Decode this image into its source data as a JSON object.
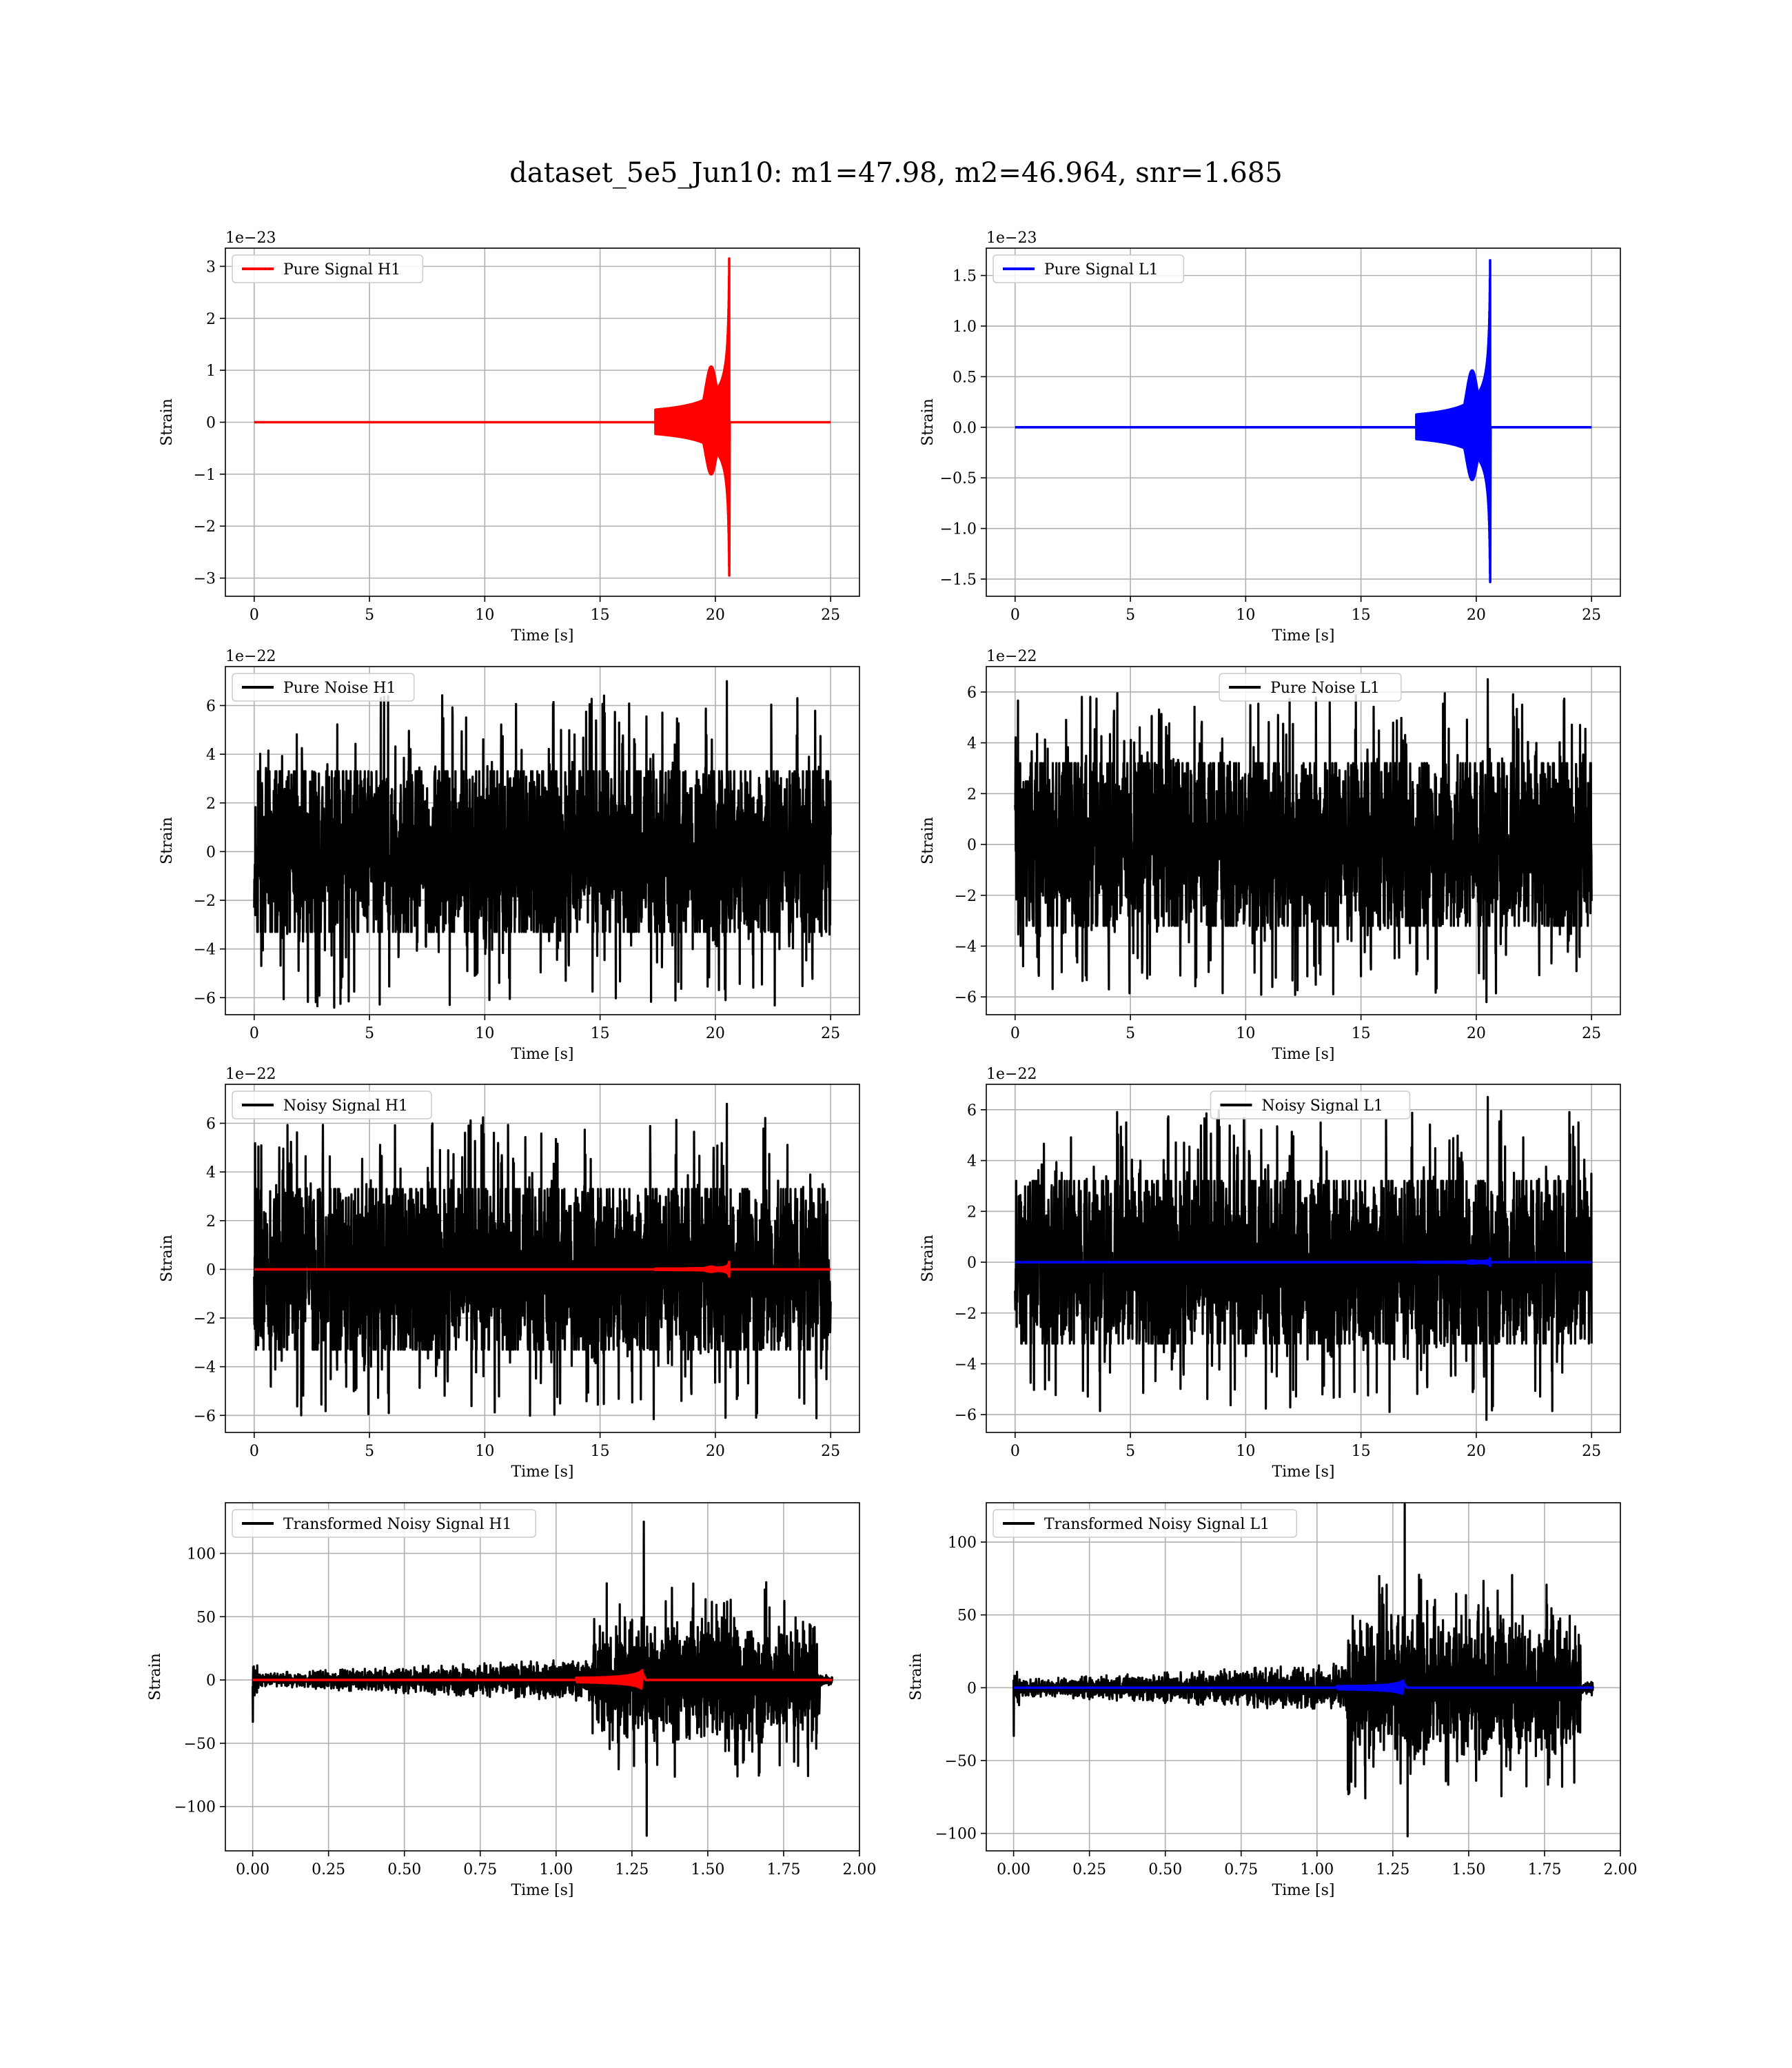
{
  "figure": {
    "title": "dataset_5e5_Jun10: m1=47.98, m2=46.964, snr=1.685"
  },
  "colors": {
    "h1": "#ff0000",
    "l1": "#0000ff",
    "noise": "#000000",
    "grid": "#b0b0b0"
  },
  "chart_data": [
    {
      "id": "pure-signal-h1",
      "type": "line",
      "xlabel": "Time [s]",
      "ylabel": "Strain",
      "offset_text": "1e−23",
      "xlim": [
        -1.25,
        26.25
      ],
      "ylim": [
        -3.35,
        3.35
      ],
      "xticks": [
        0,
        5,
        10,
        15,
        20,
        25
      ],
      "xtick_labels": [
        "0",
        "5",
        "10",
        "15",
        "20",
        "25"
      ],
      "yticks": [
        -3,
        -2,
        -1,
        0,
        1,
        2,
        3
      ],
      "ytick_labels": [
        "−3",
        "−2",
        "−1",
        "0",
        "1",
        "2",
        "3"
      ],
      "legend_position": "top-left",
      "series": [
        {
          "name": "Pure Signal H1",
          "kind": "chirp",
          "color": "#ff0000",
          "t_start": 0,
          "t_end": 25,
          "merger_time": 20.6,
          "peak_max": 3.15,
          "peak_min": -2.95,
          "inspiral_amp": 1.0
        }
      ]
    },
    {
      "id": "pure-signal-l1",
      "type": "line",
      "xlabel": "Time [s]",
      "ylabel": "Strain",
      "offset_text": "1e−23",
      "xlim": [
        -1.25,
        26.25
      ],
      "ylim": [
        -1.67,
        1.77
      ],
      "xticks": [
        0,
        5,
        10,
        15,
        20,
        25
      ],
      "xtick_labels": [
        "0",
        "5",
        "10",
        "15",
        "20",
        "25"
      ],
      "yticks": [
        -1.5,
        -1.0,
        -0.5,
        0.0,
        0.5,
        1.0,
        1.5
      ],
      "ytick_labels": [
        "−1.5",
        "−1.0",
        "−0.5",
        "0.0",
        "0.5",
        "1.0",
        "1.5"
      ],
      "legend_position": "top-left",
      "series": [
        {
          "name": "Pure Signal L1",
          "kind": "chirp",
          "color": "#0000ff",
          "t_start": 0,
          "t_end": 25,
          "merger_time": 20.6,
          "peak_max": 1.65,
          "peak_min": -1.53,
          "inspiral_amp": 0.5
        }
      ]
    },
    {
      "id": "pure-noise-h1",
      "type": "line",
      "xlabel": "Time [s]",
      "ylabel": "Strain",
      "offset_text": "1e−22",
      "xlim": [
        -1.25,
        26.25
      ],
      "ylim": [
        -6.7,
        7.6
      ],
      "xticks": [
        0,
        5,
        10,
        15,
        20,
        25
      ],
      "xtick_labels": [
        "0",
        "5",
        "10",
        "15",
        "20",
        "25"
      ],
      "yticks": [
        -6,
        -4,
        -2,
        0,
        2,
        4,
        6
      ],
      "ytick_labels": [
        "−6",
        "−4",
        "−2",
        "0",
        "2",
        "4",
        "6"
      ],
      "legend_position": "top-left",
      "series": [
        {
          "name": "Pure Noise H1",
          "kind": "noise",
          "color": "#000000",
          "t_start": 0,
          "t_end": 25,
          "band": 3.3,
          "spike_max": 7.0,
          "spike_min": -6.1
        }
      ]
    },
    {
      "id": "pure-noise-l1",
      "type": "line",
      "xlabel": "Time [s]",
      "ylabel": "Strain",
      "offset_text": "1e−22",
      "xlim": [
        -1.25,
        26.25
      ],
      "ylim": [
        -6.7,
        7.0
      ],
      "xticks": [
        0,
        5,
        10,
        15,
        20,
        25
      ],
      "xtick_labels": [
        "0",
        "5",
        "10",
        "15",
        "20",
        "25"
      ],
      "yticks": [
        -6,
        -4,
        -2,
        0,
        2,
        4,
        6
      ],
      "ytick_labels": [
        "−6",
        "−4",
        "−2",
        "0",
        "2",
        "4",
        "6"
      ],
      "legend_position": "top-center",
      "series": [
        {
          "name": "Pure Noise L1",
          "kind": "noise",
          "color": "#000000",
          "t_start": 0,
          "t_end": 25,
          "band": 3.2,
          "spike_max": 6.5,
          "spike_min": -6.2
        }
      ]
    },
    {
      "id": "noisy-signal-h1",
      "type": "line",
      "xlabel": "Time [s]",
      "ylabel": "Strain",
      "offset_text": "1e−22",
      "xlim": [
        -1.25,
        26.25
      ],
      "ylim": [
        -6.7,
        7.6
      ],
      "xticks": [
        0,
        5,
        10,
        15,
        20,
        25
      ],
      "xtick_labels": [
        "0",
        "5",
        "10",
        "15",
        "20",
        "25"
      ],
      "yticks": [
        -6,
        -4,
        -2,
        0,
        2,
        4,
        6
      ],
      "ytick_labels": [
        "−6",
        "−4",
        "−2",
        "0",
        "2",
        "4",
        "6"
      ],
      "legend_position": "top-left",
      "series": [
        {
          "name": "Noisy Signal H1",
          "kind": "noise",
          "color": "#000000",
          "t_start": 0,
          "t_end": 25,
          "band": 3.3,
          "spike_max": 6.8,
          "spike_min": -6.1
        },
        {
          "name": "",
          "kind": "chirp-small",
          "color": "#ff0000",
          "t_start": 0,
          "t_end": 25,
          "merger_time": 20.6,
          "peak_max": 0.31,
          "peak_min": -0.3
        }
      ]
    },
    {
      "id": "noisy-signal-l1",
      "type": "line",
      "xlabel": "Time [s]",
      "ylabel": "Strain",
      "offset_text": "1e−22",
      "xlim": [
        -1.25,
        26.25
      ],
      "ylim": [
        -6.7,
        7.0
      ],
      "xticks": [
        0,
        5,
        10,
        15,
        20,
        25
      ],
      "xtick_labels": [
        "0",
        "5",
        "10",
        "15",
        "20",
        "25"
      ],
      "yticks": [
        -6,
        -4,
        -2,
        0,
        2,
        4,
        6
      ],
      "ytick_labels": [
        "−6",
        "−4",
        "−2",
        "0",
        "2",
        "4",
        "6"
      ],
      "legend_position": "top-center",
      "series": [
        {
          "name": "Noisy Signal L1",
          "kind": "noise",
          "color": "#000000",
          "t_start": 0,
          "t_end": 25,
          "band": 3.2,
          "spike_max": 6.5,
          "spike_min": -6.2
        },
        {
          "name": "",
          "kind": "chirp-small",
          "color": "#0000ff",
          "t_start": 0,
          "t_end": 25,
          "merger_time": 20.6,
          "peak_max": 0.16,
          "peak_min": -0.15
        }
      ]
    },
    {
      "id": "transformed-noisy-signal-h1",
      "type": "line",
      "xlabel": "Time [s]",
      "ylabel": "Strain",
      "offset_text": "",
      "xlim": [
        -0.09,
        2.0
      ],
      "ylim": [
        -135,
        140
      ],
      "xticks": [
        0.0,
        0.25,
        0.5,
        0.75,
        1.0,
        1.25,
        1.5,
        1.75,
        2.0
      ],
      "xtick_labels": [
        "0.00",
        "0.25",
        "0.50",
        "0.75",
        "1.00",
        "1.25",
        "1.50",
        "1.75",
        "2.00"
      ],
      "yticks": [
        -100,
        -50,
        0,
        50,
        100
      ],
      "ytick_labels": [
        "−100",
        "−50",
        "0",
        "50",
        "100"
      ],
      "legend_position": "top-left",
      "series": [
        {
          "name": "Transformed Noisy Signal H1",
          "kind": "whitened",
          "color": "#000000",
          "t_start": 0,
          "t_end": 1.91,
          "jump_time": 1.12,
          "spike_max": 125,
          "spike_min": -123,
          "cutoff": 1.87
        },
        {
          "name": "",
          "kind": "whitened-chirp",
          "color": "#ff0000",
          "t_start": 0,
          "t_end": 1.91,
          "merger_time": 1.285,
          "peak_max": 8,
          "peak_min": -8
        }
      ]
    },
    {
      "id": "transformed-noisy-signal-l1",
      "type": "line",
      "xlabel": "Time [s]",
      "ylabel": "Strain",
      "offset_text": "",
      "xlim": [
        -0.09,
        2.0
      ],
      "ylim": [
        -112,
        127
      ],
      "xticks": [
        0.0,
        0.25,
        0.5,
        0.75,
        1.0,
        1.25,
        1.5,
        1.75,
        2.0
      ],
      "xtick_labels": [
        "0.00",
        "0.25",
        "0.50",
        "0.75",
        "1.00",
        "1.25",
        "1.50",
        "1.75",
        "2.00"
      ],
      "yticks": [
        -100,
        -50,
        0,
        50,
        100
      ],
      "ytick_labels": [
        "−100",
        "−50",
        "0",
        "50",
        "100"
      ],
      "legend_position": "top-left",
      "series": [
        {
          "name": "Transformed Noisy Signal L1",
          "kind": "whitened",
          "color": "#000000",
          "t_start": 0,
          "t_end": 1.91,
          "jump_time": 1.1,
          "spike_max": 126,
          "spike_min": -102,
          "cutoff": 1.87
        },
        {
          "name": "",
          "kind": "whitened-chirp",
          "color": "#0000ff",
          "t_start": 0,
          "t_end": 1.91,
          "merger_time": 1.285,
          "peak_max": 5,
          "peak_min": -5
        }
      ]
    }
  ]
}
